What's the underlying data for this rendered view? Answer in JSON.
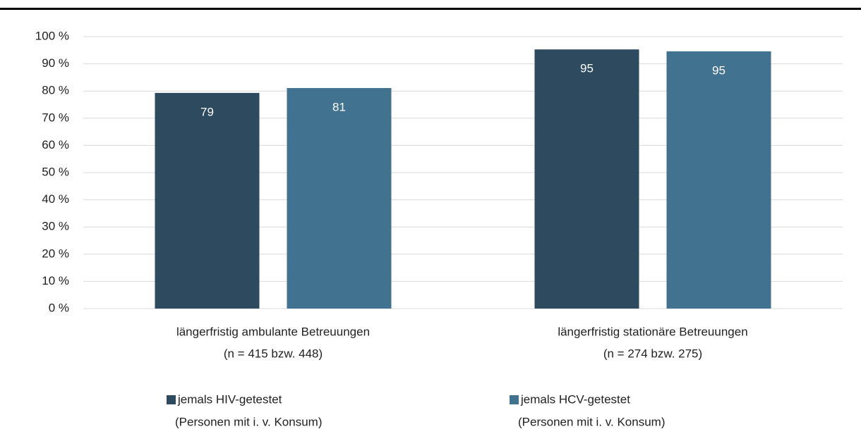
{
  "chart_data": {
    "type": "bar",
    "categories": [
      [
        "längerfristig ambulante Betreuungen",
        "(n = 415 bzw. 448)"
      ],
      [
        "längerfristig stationäre Betreuungen",
        "(n = 274 bzw. 275)"
      ]
    ],
    "series": [
      {
        "name": "jemals HIV-getestet",
        "note": "(Personen mit i. v. Konsum)",
        "color": "#2e4a5e",
        "values": [
          79.3,
          95.3
        ],
        "value_labels": [
          "79",
          "95"
        ]
      },
      {
        "name": "jemals HCV-getestet",
        "note": "(Personen mit i. v. Konsum)",
        "color": "#41728f",
        "values": [
          81.1,
          94.6
        ],
        "value_labels": [
          "81",
          "95"
        ]
      }
    ],
    "ylim": [
      0,
      100
    ],
    "yticks": [
      {
        "value": 0,
        "label": "0 %"
      },
      {
        "value": 10,
        "label": "10 %"
      },
      {
        "value": 20,
        "label": "20 %"
      },
      {
        "value": 30,
        "label": "30 %"
      },
      {
        "value": 40,
        "label": "40 %"
      },
      {
        "value": 50,
        "label": "50 %"
      },
      {
        "value": 60,
        "label": "60 %"
      },
      {
        "value": 70,
        "label": "70 %"
      },
      {
        "value": 80,
        "label": "80 %"
      },
      {
        "value": 90,
        "label": "90 %"
      },
      {
        "value": 100,
        "label": "100 %"
      }
    ],
    "grid": true,
    "legend": "bottom"
  }
}
